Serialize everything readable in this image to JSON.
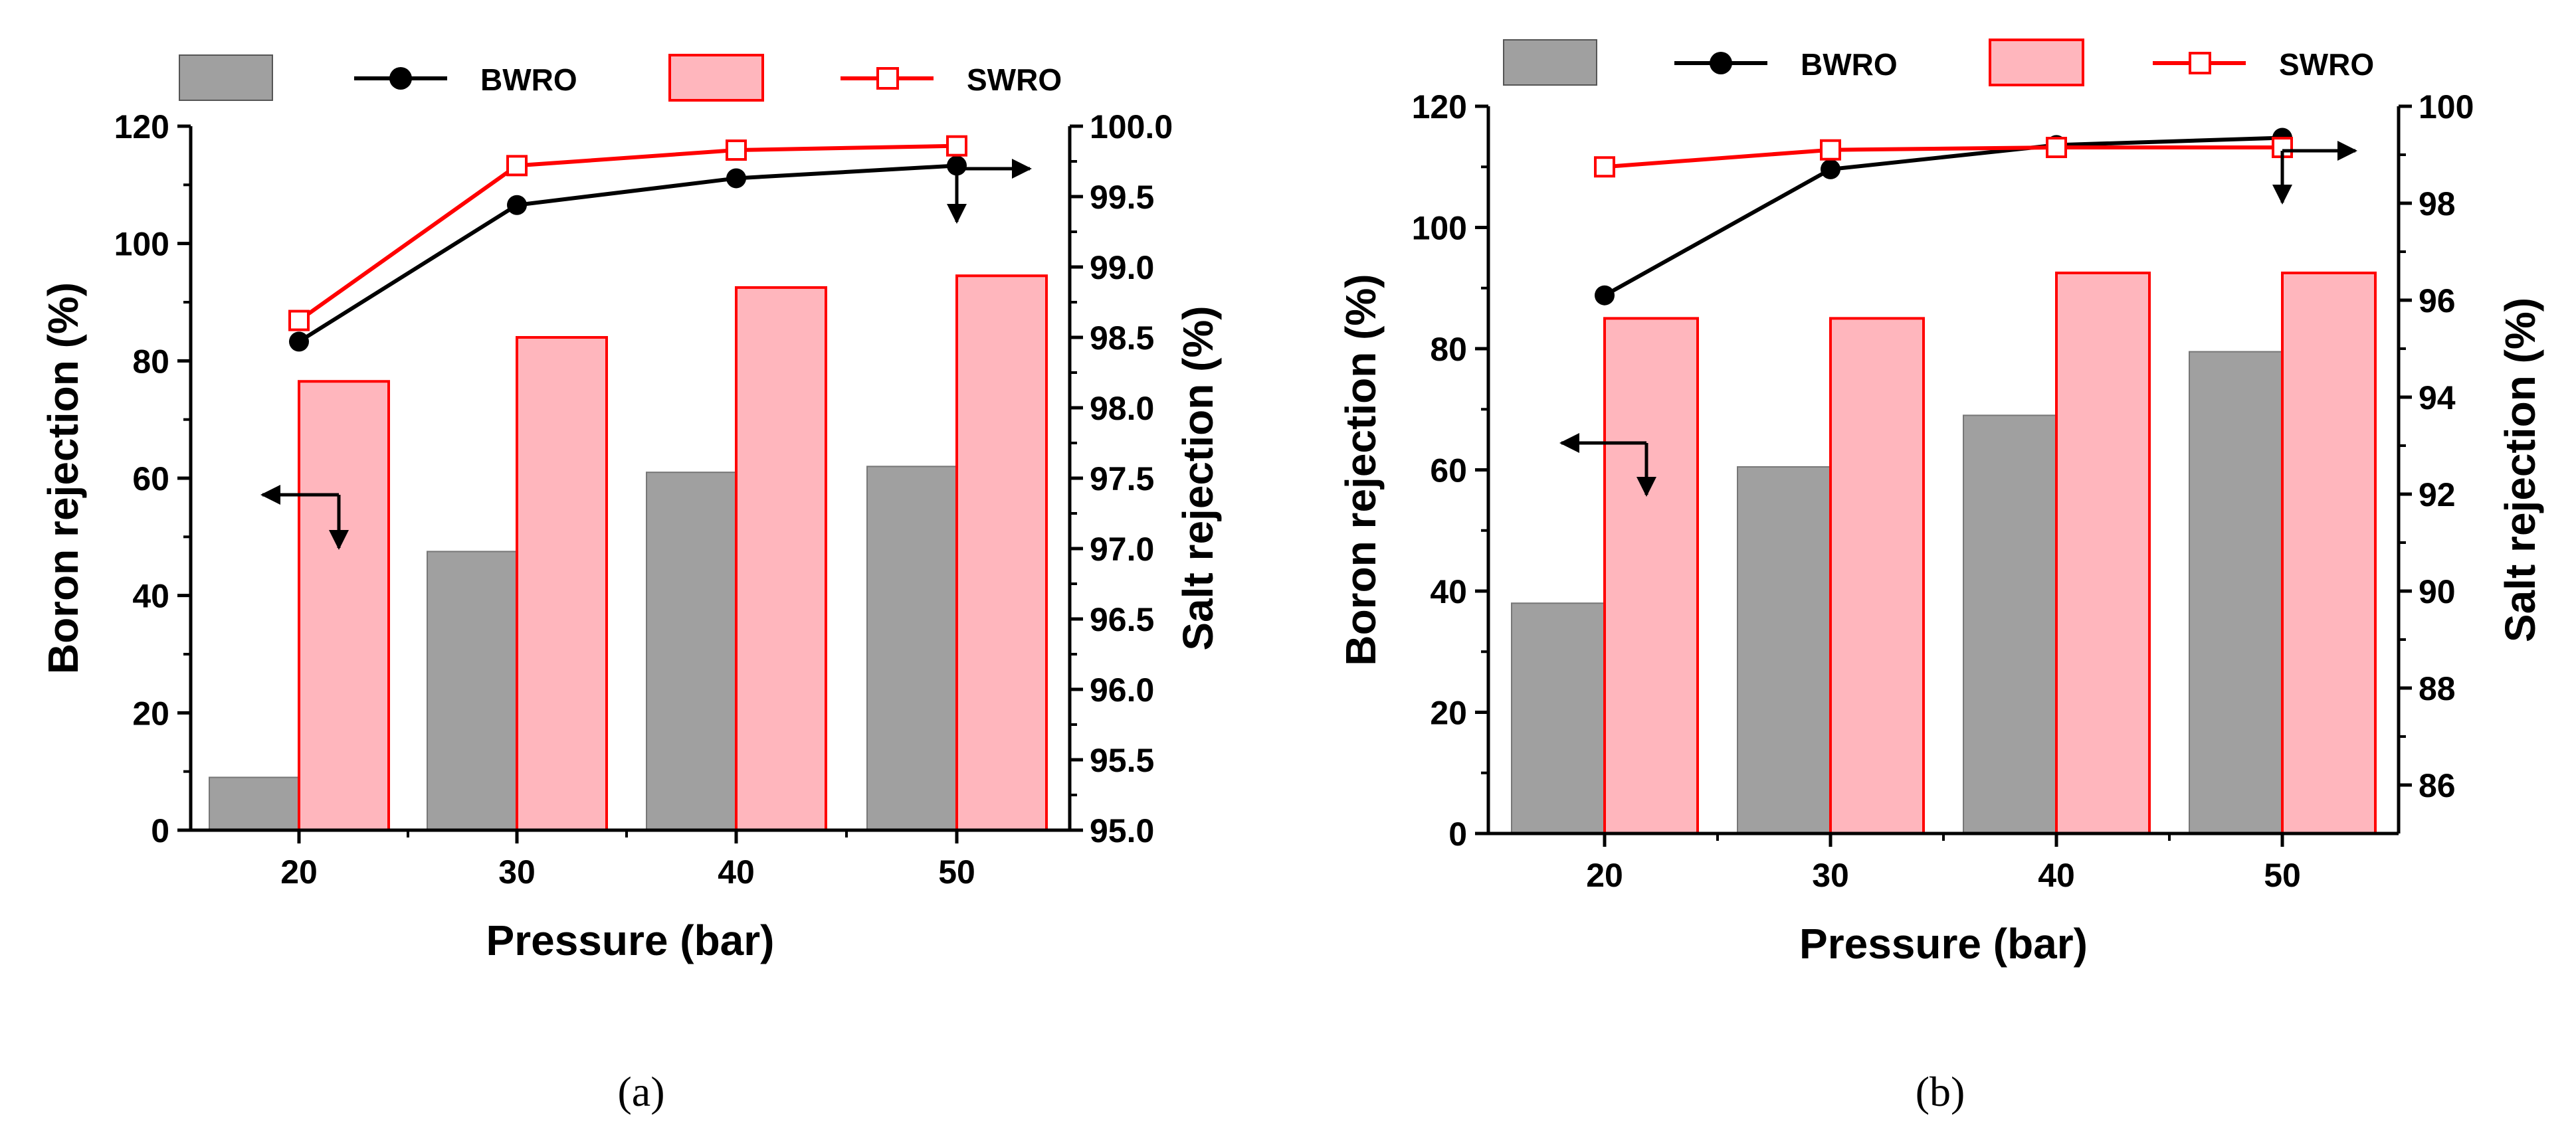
{
  "figure": {
    "captions": [
      "(a)",
      "(b)"
    ]
  },
  "colors": {
    "bwro_bar": "#a0a0a0",
    "swro_bar": "#ffb6bd",
    "swro_edge": "#ff0000",
    "bwro_line": "#000000",
    "swro_line": "#ff0000"
  },
  "chart_data": [
    {
      "id": "a",
      "type": "bar",
      "caption": "(a)",
      "xlabel": "Pressure (bar)",
      "ylabel": "Boron rejection (%)",
      "y2label": "Salt rejection (%)",
      "categories": [
        "20",
        "30",
        "40",
        "50"
      ],
      "ylim": [
        0,
        120
      ],
      "yticks": [
        0,
        20,
        40,
        60,
        80,
        100,
        120
      ],
      "y2lim": [
        95.0,
        100.0
      ],
      "y2ticks": [
        "95.0",
        "95.5",
        "96.0",
        "96.5",
        "97.0",
        "97.5",
        "98.0",
        "98.5",
        "99.0",
        "99.5",
        "100.0"
      ],
      "legend": [
        "BWRO",
        "SWRO"
      ],
      "bar_series": [
        {
          "name": "BWRO",
          "axis": "left",
          "values": [
            9,
            47.5,
            61,
            62
          ]
        },
        {
          "name": "SWRO",
          "axis": "left",
          "values": [
            76.5,
            84,
            92.5,
            94.5
          ]
        }
      ],
      "line_series": [
        {
          "name": "BWRO",
          "axis": "right",
          "marker": "circle",
          "values": [
            98.47,
            99.44,
            99.63,
            99.72
          ]
        },
        {
          "name": "SWRO",
          "axis": "right",
          "marker": "square-open",
          "values": [
            98.62,
            99.72,
            99.83,
            99.86
          ]
        }
      ]
    },
    {
      "id": "b",
      "type": "bar",
      "caption": "(b)",
      "xlabel": "Pressure (bar)",
      "ylabel": "Boron rejection (%)",
      "y2label": "Salt rejection (%)",
      "categories": [
        "20",
        "30",
        "40",
        "50"
      ],
      "ylim": [
        0,
        120
      ],
      "yticks": [
        0,
        20,
        40,
        60,
        80,
        100,
        120
      ],
      "y2lim": [
        85,
        100
      ],
      "y2ticks": [
        "86",
        "88",
        "90",
        "92",
        "94",
        "96",
        "98",
        "100"
      ],
      "legend": [
        "BWRO",
        "SWRO"
      ],
      "bar_series": [
        {
          "name": "BWRO",
          "axis": "left",
          "values": [
            38,
            60.5,
            69,
            79.5
          ]
        },
        {
          "name": "SWRO",
          "axis": "left",
          "values": [
            85,
            85,
            92.5,
            92.5
          ]
        }
      ],
      "line_series": [
        {
          "name": "BWRO",
          "axis": "right",
          "marker": "circle",
          "values": [
            96.1,
            98.7,
            99.2,
            99.35
          ]
        },
        {
          "name": "SWRO",
          "axis": "right",
          "marker": "square-open",
          "values": [
            98.75,
            99.1,
            99.15,
            99.15
          ]
        }
      ]
    }
  ]
}
